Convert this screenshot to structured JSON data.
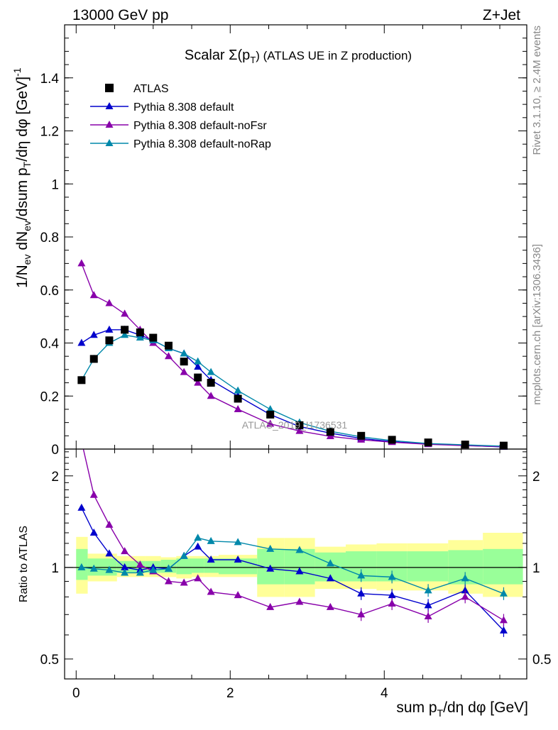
{
  "header": {
    "left": "13000 GeV pp",
    "right": "Z+Jet"
  },
  "side_labels": {
    "rivet": "Rivet 3.1.10, ≥ 2.4M events",
    "mcplots": "mcplots.cern.ch [arXiv:1306.3436]"
  },
  "watermark": "ATLAS_2019_I1736531",
  "colors": {
    "atlas": "#000000",
    "default": "#0000cc",
    "noFsr": "#8800aa",
    "noRap": "#0088aa",
    "band_inner": "#99ff99",
    "band_outer": "#ffff99"
  },
  "chart_data": [
    {
      "type": "line",
      "title": "Scalar Σ(p_T) (ATLAS UE in Z production)",
      "title_parts": {
        "a": "Scalar Σ(p",
        "sub": "T",
        "b": ") (ATLAS UE in Z production)"
      },
      "ylabel": "1/N_ev dN_ev/dsum p_T/dη dφ [GeV]^-1",
      "ylabel_parts": {
        "a": "1/N",
        "s1": "ev",
        "b": " dN",
        "s2": "ev",
        "c": "/dsum p",
        "s3": "T",
        "d": "/dη dφ  [GeV]",
        "sup": "-1"
      },
      "xlim": [
        -0.15,
        5.85
      ],
      "ylim": [
        0,
        1.6
      ],
      "yticks": [
        0,
        0.2,
        0.4,
        0.6,
        0.8,
        1,
        1.2,
        1.4
      ],
      "ytick_labels": [
        "0",
        "0.2",
        "0.4",
        "0.6",
        "0.8",
        "1",
        "1.2",
        "1.4"
      ],
      "x": [
        0.07,
        0.23,
        0.43,
        0.63,
        0.83,
        1.0,
        1.2,
        1.4,
        1.58,
        1.75,
        2.1,
        2.52,
        2.9,
        3.3,
        3.7,
        4.1,
        4.57,
        5.05,
        5.55
      ],
      "series": [
        {
          "name": "ATLAS",
          "marker": "square",
          "values": [
            0.26,
            0.34,
            0.41,
            0.45,
            0.44,
            0.42,
            0.39,
            0.33,
            0.27,
            0.25,
            0.19,
            0.13,
            0.09,
            0.065,
            0.05,
            0.035,
            0.025,
            0.017,
            0.013
          ]
        },
        {
          "name": "Pythia 8.308 default",
          "marker": "triangle",
          "values": [
            0.4,
            0.43,
            0.45,
            0.45,
            0.43,
            0.41,
            0.38,
            0.36,
            0.31,
            0.26,
            0.2,
            0.13,
            0.085,
            0.06,
            0.04,
            0.028,
            0.019,
            0.014,
            0.008
          ]
        },
        {
          "name": "Pythia 8.308 default-noFsr",
          "marker": "triangle",
          "values": [
            0.7,
            0.58,
            0.55,
            0.51,
            0.45,
            0.4,
            0.35,
            0.29,
            0.25,
            0.2,
            0.15,
            0.095,
            0.068,
            0.048,
            0.035,
            0.026,
            0.018,
            0.013,
            0.009
          ]
        },
        {
          "name": "Pythia 8.308 default-noRap",
          "marker": "triangle",
          "values": [
            0.26,
            0.34,
            0.4,
            0.43,
            0.42,
            0.41,
            0.38,
            0.36,
            0.33,
            0.29,
            0.22,
            0.15,
            0.1,
            0.067,
            0.046,
            0.032,
            0.021,
            0.016,
            0.011
          ]
        }
      ]
    },
    {
      "type": "line",
      "ylabel": "Ratio to ATLAS",
      "xlabel": "sum p_T/dη dφ [GeV]",
      "xlabel_parts": {
        "a": "sum p",
        "sub": "T",
        "b": "/dη dφ [GeV]"
      },
      "xlim": [
        -0.15,
        5.85
      ],
      "ylim": [
        0.43,
        2.45
      ],
      "log_y": true,
      "yticks": [
        0.5,
        1,
        2
      ],
      "ytick_labels": [
        "0.5",
        "1",
        "2"
      ],
      "xticks": [
        0,
        2,
        4
      ],
      "xtick_labels": [
        "0",
        "2",
        "4"
      ],
      "reference": 1,
      "uncertainty_bands": [
        [
          0,
          0.15,
          0.91,
          1.15,
          0.82,
          1.26
        ],
        [
          0.15,
          0.53,
          0.94,
          1.07,
          0.9,
          1.11
        ],
        [
          0.53,
          0.73,
          0.96,
          1.05,
          0.93,
          1.09
        ],
        [
          0.73,
          0.9,
          0.96,
          1.05,
          0.93,
          1.09
        ],
        [
          0.9,
          1.1,
          0.96,
          1.05,
          0.93,
          1.09
        ],
        [
          1.1,
          1.3,
          0.96,
          1.06,
          0.93,
          1.08
        ],
        [
          1.3,
          1.5,
          0.95,
          1.07,
          0.92,
          1.09
        ],
        [
          1.5,
          1.66,
          0.96,
          1.07,
          0.93,
          1.09
        ],
        [
          1.66,
          1.85,
          0.96,
          1.07,
          0.93,
          1.09
        ],
        [
          1.85,
          2.35,
          0.95,
          1.07,
          0.93,
          1.1
        ],
        [
          2.35,
          2.7,
          0.88,
          1.15,
          0.8,
          1.25
        ],
        [
          2.7,
          3.1,
          0.88,
          1.15,
          0.8,
          1.25
        ],
        [
          3.1,
          3.5,
          0.9,
          1.12,
          0.85,
          1.17
        ],
        [
          3.5,
          3.9,
          0.9,
          1.13,
          0.85,
          1.19
        ],
        [
          3.9,
          4.3,
          0.9,
          1.13,
          0.84,
          1.2
        ],
        [
          4.3,
          4.83,
          0.9,
          1.13,
          0.84,
          1.2
        ],
        [
          4.83,
          5.28,
          0.88,
          1.14,
          0.82,
          1.23
        ],
        [
          5.28,
          5.8,
          0.88,
          1.15,
          0.8,
          1.3
        ]
      ],
      "x": [
        0.07,
        0.23,
        0.43,
        0.63,
        0.83,
        1.0,
        1.2,
        1.4,
        1.58,
        1.75,
        2.1,
        2.52,
        2.9,
        3.3,
        3.7,
        4.1,
        4.57,
        5.05,
        5.55
      ],
      "series": [
        {
          "name": "Pythia 8.308 default",
          "values": [
            1.57,
            1.3,
            1.11,
            1.0,
            0.98,
            1.0,
            0.99,
            1.09,
            1.17,
            1.06,
            1.06,
            0.99,
            0.97,
            0.92,
            0.82,
            0.81,
            0.75,
            0.84,
            0.62
          ]
        },
        {
          "name": "Pythia 8.308 default-noFsr",
          "values": [
            2.6,
            1.73,
            1.38,
            1.13,
            1.02,
            0.97,
            0.9,
            0.89,
            0.92,
            0.83,
            0.81,
            0.74,
            0.77,
            0.74,
            0.7,
            0.76,
            0.69,
            0.8,
            0.67
          ]
        },
        {
          "name": "Pythia 8.308 default-noRap",
          "values": [
            1.0,
            0.99,
            0.98,
            0.96,
            0.96,
            0.98,
            0.99,
            1.09,
            1.25,
            1.22,
            1.21,
            1.15,
            1.14,
            1.03,
            0.94,
            0.93,
            0.84,
            0.92,
            0.82
          ]
        }
      ]
    }
  ]
}
